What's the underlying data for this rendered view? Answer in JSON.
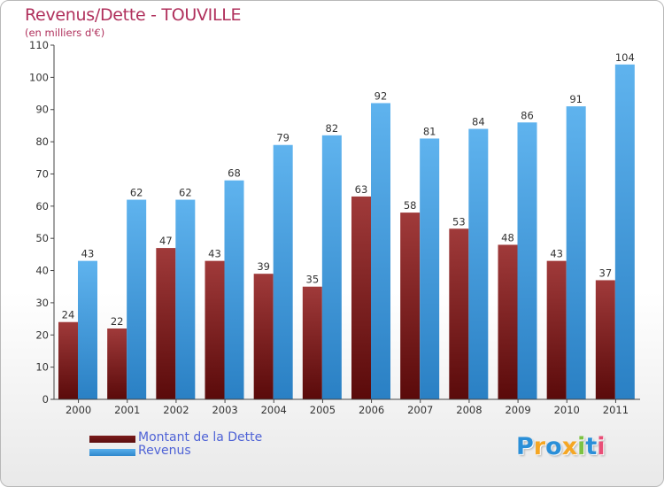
{
  "chart_data": {
    "type": "bar",
    "title": "Revenus/Dette - TOUVILLE",
    "subtitle": "(en milliers d'€)",
    "categories": [
      "2000",
      "2001",
      "2002",
      "2003",
      "2004",
      "2005",
      "2006",
      "2007",
      "2008",
      "2009",
      "2010",
      "2011"
    ],
    "series": [
      {
        "name": "Montant de la Dette",
        "color": "#7a1a1a",
        "values": [
          24,
          22,
          47,
          43,
          39,
          35,
          63,
          58,
          53,
          48,
          43,
          37
        ]
      },
      {
        "name": "Revenus",
        "color": "#3d9be0",
        "values": [
          43,
          62,
          62,
          68,
          79,
          82,
          92,
          81,
          84,
          86,
          91,
          104
        ]
      }
    ],
    "ylim": [
      0,
      110
    ],
    "yticks": [
      0,
      10,
      20,
      30,
      40,
      50,
      60,
      70,
      80,
      90,
      100,
      110
    ],
    "grid": false,
    "legend_position": "bottom-left"
  },
  "logo": {
    "text": "Proxiti",
    "letters": [
      {
        "ch": "P",
        "color": "#2a8fd8"
      },
      {
        "ch": "r",
        "color": "#f5a623"
      },
      {
        "ch": "o",
        "color": "#2a8fd8"
      },
      {
        "ch": "x",
        "color": "#f5a623"
      },
      {
        "ch": "i",
        "color": "#7cc242"
      },
      {
        "ch": "t",
        "color": "#2a8fd8"
      },
      {
        "ch": "i",
        "color": "#e94e77"
      }
    ]
  }
}
